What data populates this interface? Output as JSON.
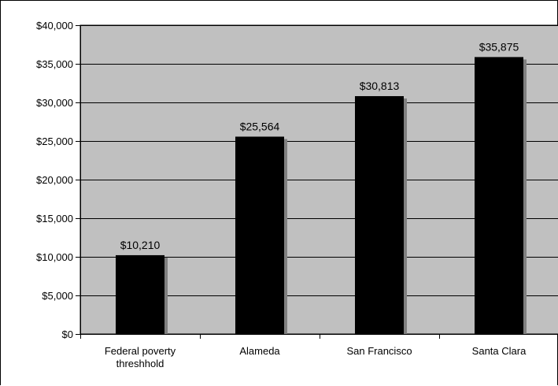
{
  "chart_data": {
    "type": "bar",
    "title": "",
    "xlabel": "",
    "ylabel": "",
    "categories": [
      "Federal poverty threshhold",
      "Alameda",
      "San Francisco",
      "Santa Clara"
    ],
    "category_lines": [
      [
        "Federal poverty",
        "threshhold"
      ],
      [
        "Alameda"
      ],
      [
        "San Francisco"
      ],
      [
        "Santa Clara"
      ]
    ],
    "values": [
      10210,
      25564,
      30813,
      35875
    ],
    "data_labels": [
      "$10,210",
      "$25,564",
      "$30,813",
      "$35,875"
    ],
    "ylim": [
      0,
      40000
    ],
    "yticks": [
      0,
      5000,
      10000,
      15000,
      20000,
      25000,
      30000,
      35000,
      40000
    ],
    "ytick_labels": [
      "$0",
      "$5,000",
      "$10,000",
      "$15,000",
      "$20,000",
      "$25,000",
      "$30,000",
      "$35,000",
      "$40,000"
    ],
    "grid": true,
    "legend": "none",
    "colors": {
      "plot_background": "#c0c0c0",
      "bar": "#000000",
      "bar_shadow": "#808080",
      "gridline": "#000000"
    }
  }
}
